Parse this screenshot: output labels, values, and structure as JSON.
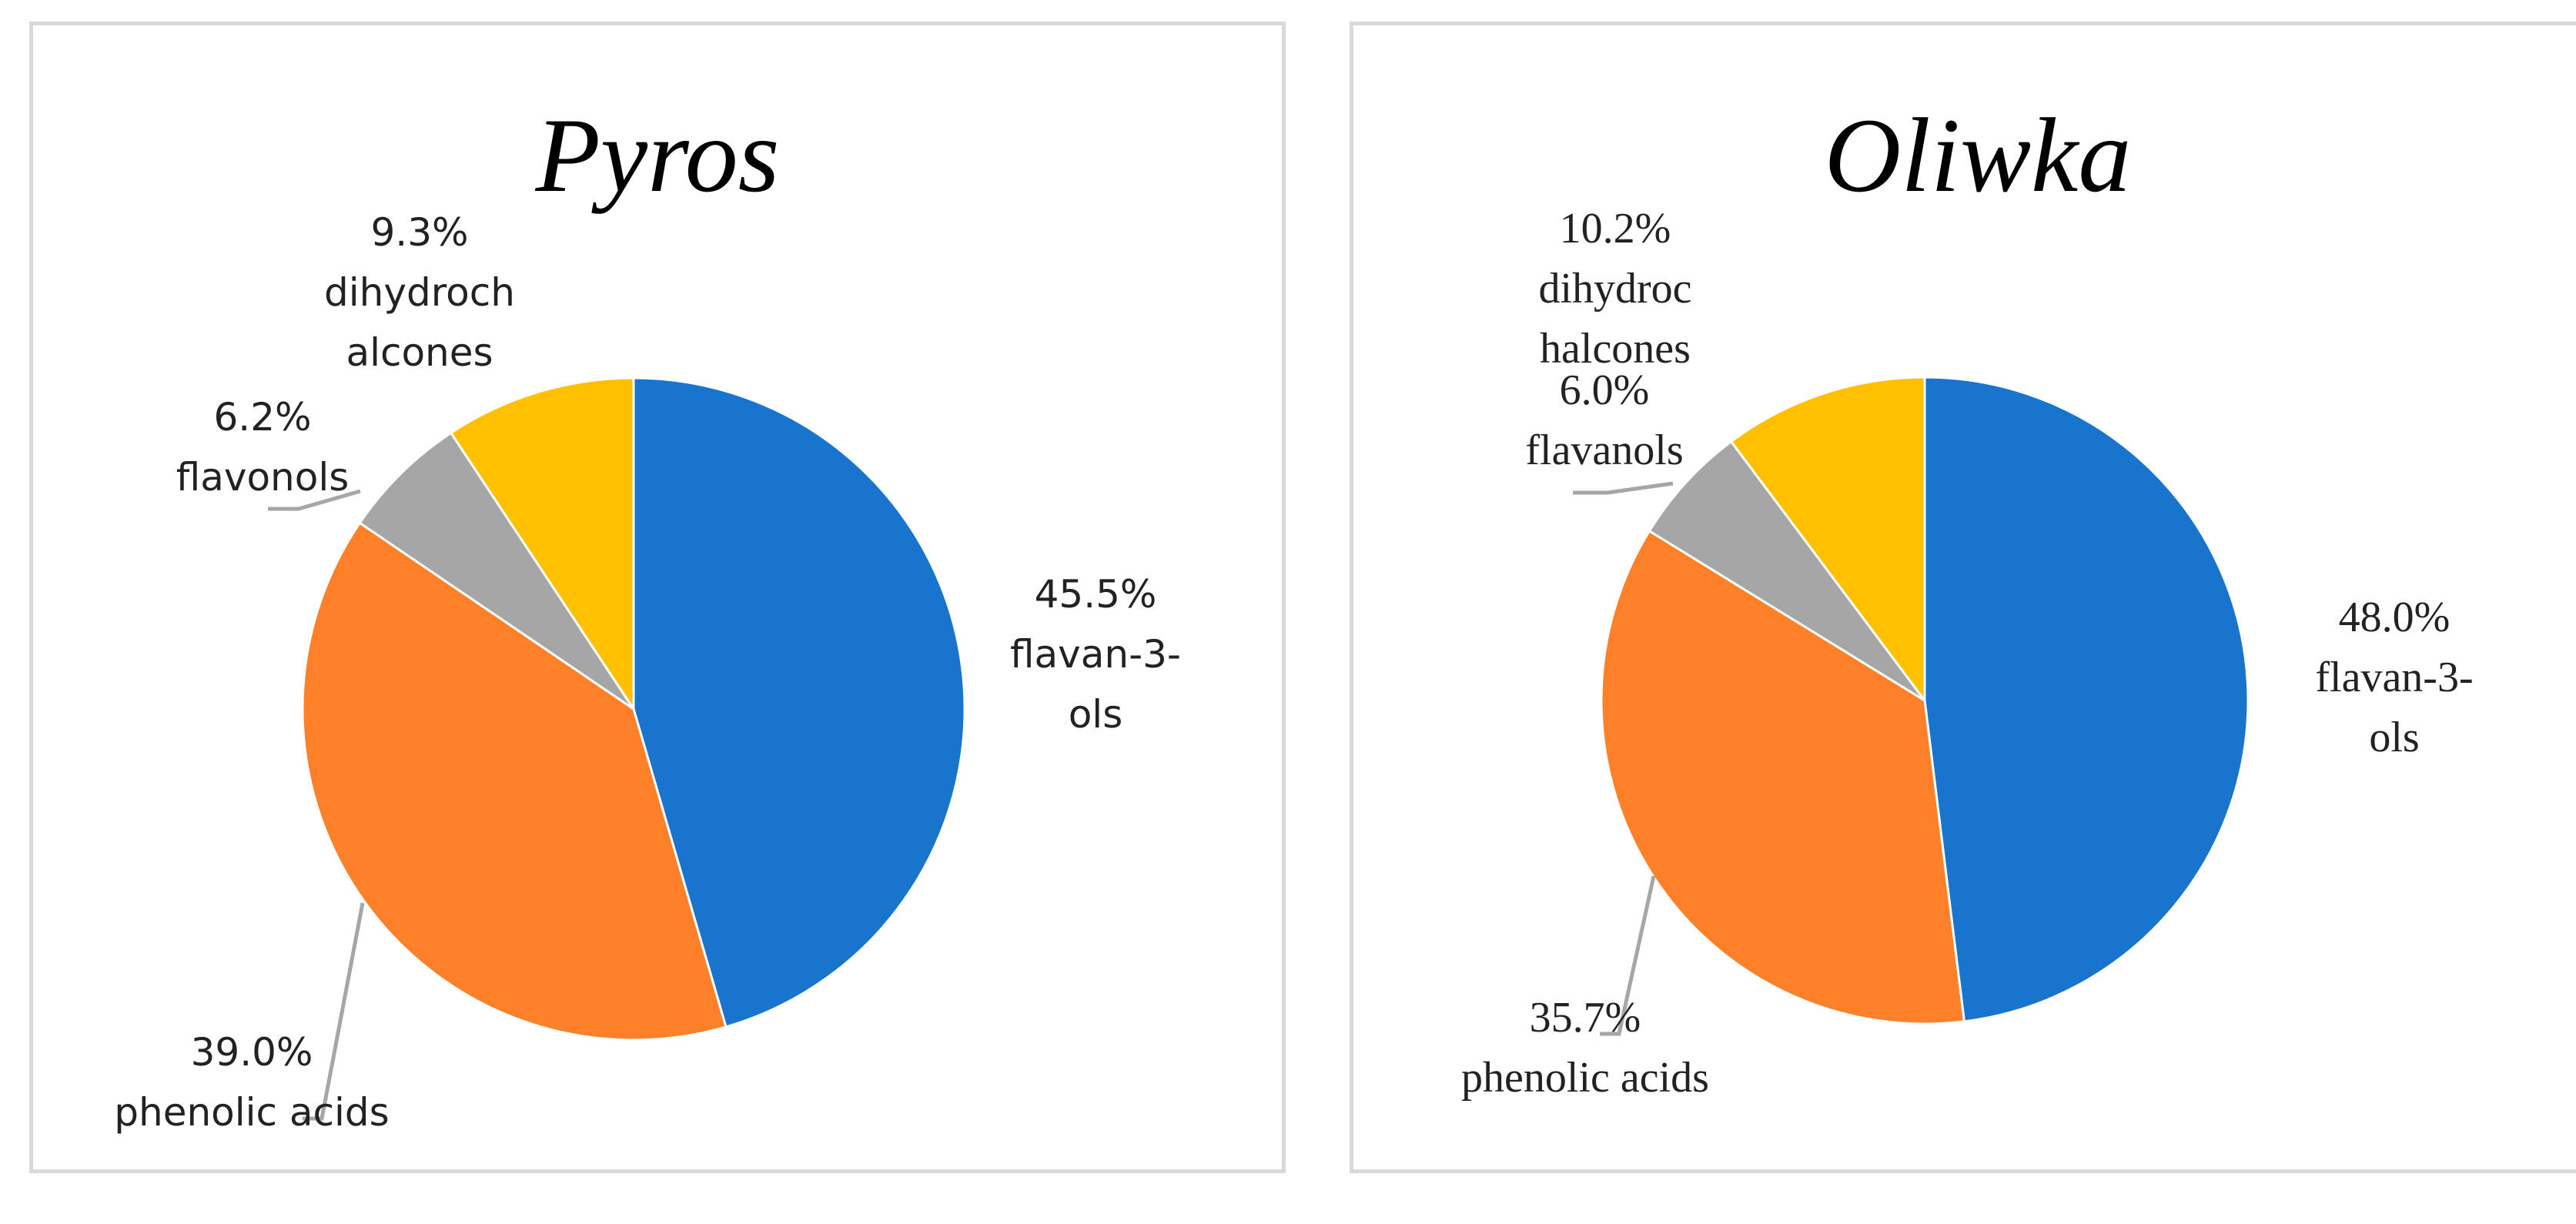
{
  "chart_data": [
    {
      "type": "pie",
      "title": "Pyros",
      "slices": [
        {
          "value": 45.5,
          "percent_label": "45.5%",
          "name_lines": [
            "flavan-3-",
            "ols"
          ],
          "color": "#1874cd"
        },
        {
          "value": 39.0,
          "percent_label": "39.0%",
          "name_lines": [
            "phenolic acids"
          ],
          "color": "#fe8028"
        },
        {
          "value": 6.2,
          "percent_label": "6.2%",
          "name_lines": [
            "flavonols"
          ],
          "color": "#a6a6a6"
        },
        {
          "value": 9.3,
          "percent_label": "9.3%",
          "name_lines": [
            "dihydroch",
            "alcones"
          ],
          "color": "#ffc000"
        }
      ]
    },
    {
      "type": "pie",
      "title": "Oliwka",
      "slices": [
        {
          "value": 48.0,
          "percent_label": "48.0%",
          "name_lines": [
            "flavan-3-",
            "ols"
          ],
          "color": "#1874cd"
        },
        {
          "value": 35.7,
          "percent_label": "35.7%",
          "name_lines": [
            "phenolic acids"
          ],
          "color": "#fe8028"
        },
        {
          "value": 6.0,
          "percent_label": "6.0%",
          "name_lines": [
            "flavanols"
          ],
          "color": "#a6a6a6"
        },
        {
          "value": 10.2,
          "percent_label": "10.2%",
          "name_lines": [
            "dihydroc",
            "halcones"
          ],
          "color": "#ffc000"
        }
      ]
    }
  ]
}
